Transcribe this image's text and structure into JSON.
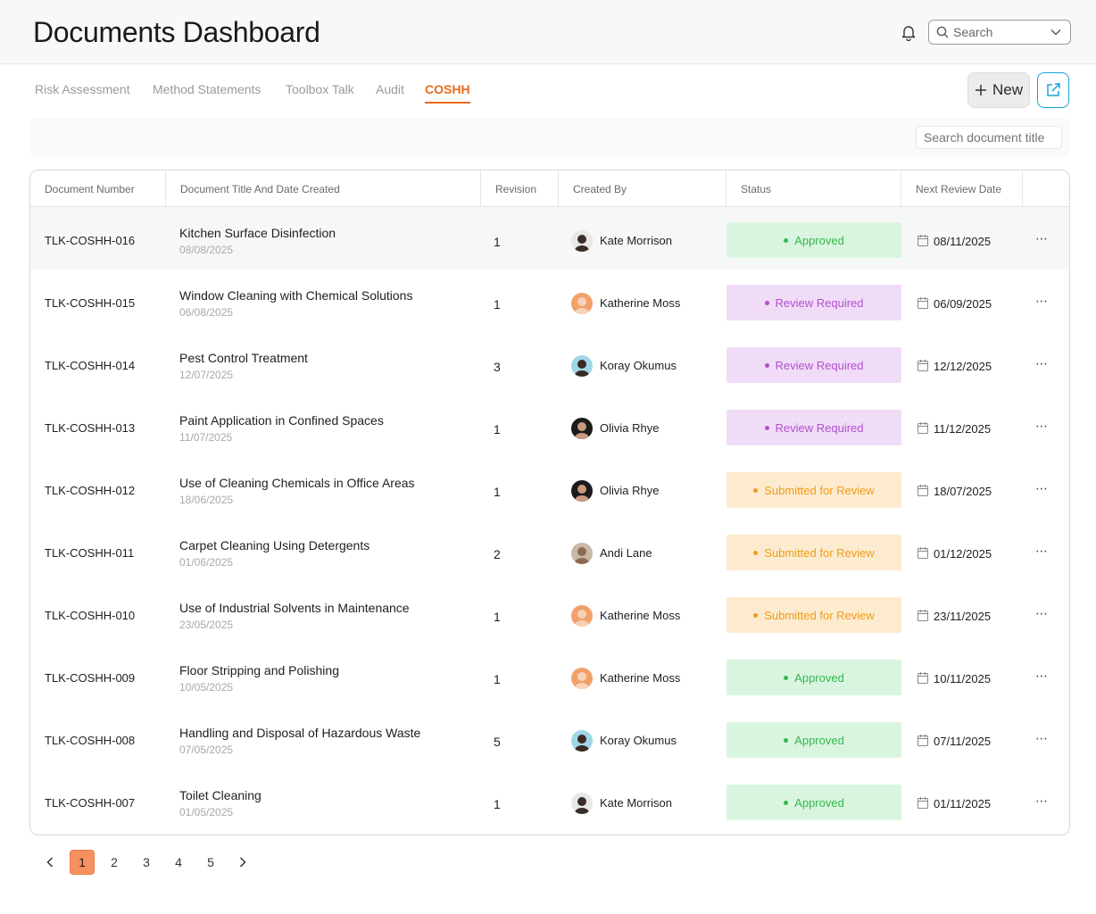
{
  "header": {
    "title": "Documents Dashboard",
    "search_placeholder": "Search"
  },
  "tabs": [
    {
      "label": "Risk Assessment",
      "active": false
    },
    {
      "label": "Method Statements",
      "active": false
    },
    {
      "label": "Toolbox Talk",
      "active": false
    },
    {
      "label": "Audit",
      "active": false
    },
    {
      "label": "COSHH",
      "active": true
    }
  ],
  "actions": {
    "new_label": "New"
  },
  "filter": {
    "doc_search_placeholder": "Search document title"
  },
  "table": {
    "columns": [
      "Document Number",
      "Document Title And Date Created",
      "Revision",
      "Created By",
      "Status",
      "Next Review Date"
    ],
    "rows": [
      {
        "doc": "TLK-COSHH-016",
        "title": "Kitchen Surface Disinfection",
        "date": "08/08/2025",
        "rev": "1",
        "creator": "Kate Morrison",
        "status": "Approved",
        "status_type": "approved",
        "review": "08/11/2025"
      },
      {
        "doc": "TLK-COSHH-015",
        "title": "Window Cleaning with Chemical Solutions",
        "date": "06/08/2025",
        "rev": "1",
        "creator": "Katherine Moss",
        "status": "Review Required",
        "status_type": "review",
        "review": "06/09/2025"
      },
      {
        "doc": "TLK-COSHH-014",
        "title": "Pest Control Treatment",
        "date": "12/07/2025",
        "rev": "3",
        "creator": "Koray Okumus",
        "status": "Review Required",
        "status_type": "review",
        "review": "12/12/2025"
      },
      {
        "doc": "TLK-COSHH-013",
        "title": "Paint Application in Confined Spaces",
        "date": "11/07/2025",
        "rev": "1",
        "creator": "Olivia Rhye",
        "status": "Review Required",
        "status_type": "review",
        "review": "11/12/2025"
      },
      {
        "doc": "TLK-COSHH-012",
        "title": "Use of Cleaning Chemicals in Office Areas",
        "date": "18/06/2025",
        "rev": "1",
        "creator": "Olivia Rhye",
        "status": "Submitted for Review",
        "status_type": "submitted",
        "review": "18/07/2025"
      },
      {
        "doc": "TLK-COSHH-011",
        "title": "Carpet Cleaning Using Detergents",
        "date": "01/06/2025",
        "rev": "2",
        "creator": "Andi Lane",
        "status": "Submitted for Review",
        "status_type": "submitted",
        "review": "01/12/2025"
      },
      {
        "doc": "TLK-COSHH-010",
        "title": "Use of Industrial Solvents in Maintenance",
        "date": "23/05/2025",
        "rev": "1",
        "creator": "Katherine Moss",
        "status": "Submitted for Review",
        "status_type": "submitted",
        "review": "23/11/2025"
      },
      {
        "doc": "TLK-COSHH-009",
        "title": "Floor Stripping and Polishing",
        "date": "10/05/2025",
        "rev": "1",
        "creator": "Katherine Moss",
        "status": "Approved",
        "status_type": "approved",
        "review": "10/11/2025"
      },
      {
        "doc": "TLK-COSHH-008",
        "title": "Handling and Disposal of Hazardous Waste",
        "date": "07/05/2025",
        "rev": "5",
        "creator": "Koray Okumus",
        "status": "Approved",
        "status_type": "approved",
        "review": "07/11/2025"
      },
      {
        "doc": "TLK-COSHH-007",
        "title": "Toilet Cleaning",
        "date": "01/05/2025",
        "rev": "1",
        "creator": "Kate Morrison",
        "status": "Approved",
        "status_type": "approved",
        "review": "01/11/2025"
      }
    ]
  },
  "avatar_colors": {
    "Kate Morrison": [
      "#e8e8e8",
      "#3a2c28"
    ],
    "Katherine Moss": [
      "#f2a06a",
      "#f5d2b8"
    ],
    "Koray Okumus": [
      "#9fd7e6",
      "#3b2a22"
    ],
    "Olivia Rhye": [
      "#1b1b1b",
      "#c99a80"
    ],
    "Andi Lane": [
      "#c9b8a6",
      "#8a6a52"
    ]
  },
  "pagination": {
    "pages": [
      "1",
      "2",
      "3",
      "4",
      "5"
    ],
    "current": "1"
  }
}
